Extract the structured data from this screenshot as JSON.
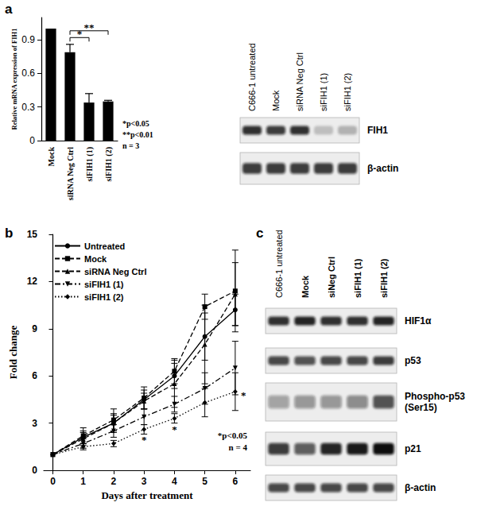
{
  "panel_labels": [
    "a",
    "b",
    "c"
  ],
  "chart_data": [
    {
      "type": "bar",
      "categories": [
        "Mock",
        "siRNA Neg Ctrl",
        "siFIH1 (1)",
        "siFIH1 (2)"
      ],
      "values": [
        1,
        0.79,
        0.34,
        0.35
      ],
      "errors": [
        0,
        0.07,
        0.08,
        0.01
      ],
      "color": "#000000",
      "y_label": "Relative mRNA expression of FIH1",
      "ylim": [
        0,
        1.1
      ],
      "yticks": [
        0,
        0.3,
        0.6,
        0.9
      ],
      "grid": false,
      "significance": [
        {
          "from": "siRNA Neg Ctrl",
          "to": "siFIH1 (1)",
          "label": "*"
        },
        {
          "from": "siRNA Neg Ctrl",
          "to": "siFIH1 (2)",
          "label": "**"
        }
      ],
      "notes": [
        "*p<0.05",
        "**p<0.01",
        "n = 3"
      ]
    },
    {
      "type": "line",
      "x": [
        0,
        1,
        2,
        3,
        4,
        5,
        6
      ],
      "series": [
        {
          "name": "Untreated",
          "color": "#000000",
          "marker": "circle",
          "line_style": "solid",
          "values": [
            1,
            2.1,
            3.0,
            4.5,
            6.0,
            8.5,
            10.2
          ],
          "errors": [
            0,
            0.4,
            0.5,
            0.6,
            0.8,
            1.5,
            1.0
          ]
        },
        {
          "name": "Mock",
          "color": "#000000",
          "marker": "square",
          "line_style": "dashed",
          "values": [
            1,
            2.2,
            3.2,
            4.6,
            6.3,
            10.4,
            11.4
          ],
          "errors": [
            0,
            0.5,
            0.7,
            0.7,
            0.8,
            0.8,
            2.6
          ]
        },
        {
          "name": "siRNA Neg Ctrl",
          "color": "#000000",
          "marker": "triangle",
          "line_style": "dashed",
          "values": [
            1,
            2.0,
            3.0,
            4.4,
            5.5,
            8.0,
            11.2
          ],
          "errors": [
            0,
            0.4,
            0.6,
            0.5,
            1.5,
            2.5,
            2.0
          ]
        },
        {
          "name": "siFIH1 (1)",
          "color": "#000000",
          "marker": "triangle-down",
          "line_style": "dashdot",
          "values": [
            1,
            1.7,
            2.5,
            3.4,
            4.2,
            5.2,
            6.5
          ],
          "errors": [
            0,
            0.3,
            0.4,
            0.5,
            0.5,
            1.0,
            1.7
          ]
        },
        {
          "name": "siFIH1 (2)",
          "color": "#000000",
          "marker": "diamond",
          "line_style": "dotted",
          "values": [
            1,
            1.5,
            1.7,
            2.6,
            3.3,
            4.3,
            5.0
          ],
          "errors": [
            0,
            0.2,
            0.2,
            0.3,
            0.3,
            0.9,
            1.2
          ]
        }
      ],
      "x_label": "Days after treatment",
      "y_label": "Fold change",
      "xlim": [
        -0.3,
        6.5
      ],
      "xticks": [
        0,
        1,
        2,
        3,
        4,
        5,
        6
      ],
      "ylim": [
        0,
        15
      ],
      "yticks": [
        0,
        3,
        6,
        9,
        12,
        15
      ],
      "grid": false,
      "legend": "upper left",
      "significance": {
        "series": "siFIH1 (2)",
        "x": [
          3,
          4,
          6
        ],
        "label": "*"
      },
      "notes": [
        "*p<0.05",
        "n = 4"
      ]
    }
  ],
  "blots": [
    {
      "panel": "a",
      "lanes": [
        "C666-1 untreated",
        "Mock",
        "siRNA Neg Ctrl",
        "siFIH1 (1)",
        "siFIH1 (2)"
      ],
      "rows": [
        {
          "label": "FIH1",
          "levels": [
            0.85,
            0.8,
            0.85,
            0.2,
            0.25
          ]
        },
        {
          "label": "β-actin",
          "levels": [
            0.8,
            0.8,
            0.8,
            0.8,
            0.8
          ]
        }
      ]
    },
    {
      "panel": "c",
      "lanes": [
        "C666-1 untreated",
        "Mock",
        "siNeg Ctrl",
        "siFIH1 (1)",
        "siFIH1 (2)"
      ],
      "rows": [
        {
          "label": "HIF1α",
          "levels": [
            0.85,
            0.9,
            0.85,
            0.85,
            0.9
          ]
        },
        {
          "label": "p53",
          "levels": [
            0.75,
            0.7,
            0.75,
            0.75,
            0.8
          ]
        },
        {
          "label": [
            "Phospho-p53",
            "(Ser15)"
          ],
          "levels": [
            0.35,
            0.4,
            0.4,
            0.45,
            0.7
          ]
        },
        {
          "label": "p21",
          "levels": [
            0.8,
            0.65,
            0.9,
            0.95,
            1.0
          ]
        },
        {
          "label": "β-actin",
          "levels": [
            0.75,
            0.75,
            0.75,
            0.75,
            0.75
          ]
        }
      ]
    }
  ]
}
